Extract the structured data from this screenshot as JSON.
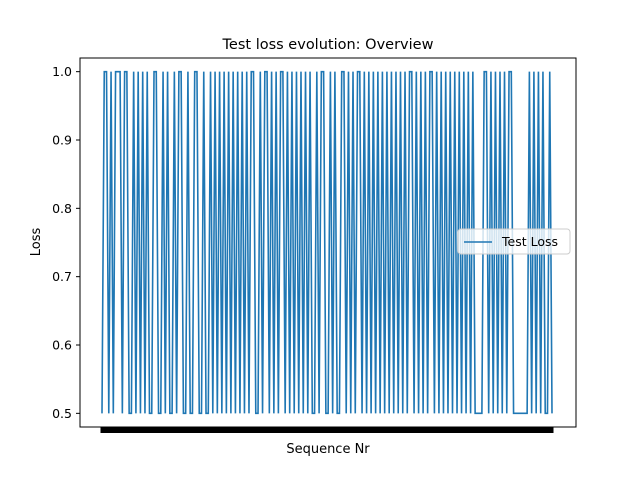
{
  "chart_data": {
    "type": "line",
    "title": "Test loss evolution: Overview",
    "xlabel": "Sequence Nr",
    "ylabel": "Loss",
    "ylim": [
      0.48,
      1.02
    ],
    "yticks": [
      "0.5",
      "0.6",
      "0.7",
      "0.8",
      "0.9",
      "1.0"
    ],
    "ytick_values": [
      0.5,
      0.6,
      0.7,
      0.8,
      0.9,
      1.0
    ],
    "grid": false,
    "legend_position": "center-right",
    "series": [
      {
        "name": "Test Loss",
        "color": "#1f77b4",
        "baseline": 0.5,
        "spike_value": 1.0,
        "values_x": [
          0,
          1,
          2,
          3,
          4,
          5,
          6,
          7,
          8,
          9,
          10,
          11,
          12,
          13,
          14,
          15,
          16,
          17,
          18,
          19,
          20,
          21,
          22,
          23,
          24,
          25,
          26,
          27,
          28,
          29,
          30,
          31,
          32,
          33,
          34,
          35,
          36,
          37,
          38,
          39,
          40,
          41,
          42,
          43,
          44,
          45,
          46,
          47,
          48,
          49,
          50,
          51,
          52,
          53,
          54,
          55,
          56,
          57,
          58,
          59,
          60,
          61,
          62,
          63,
          64,
          65,
          66,
          67,
          68,
          69,
          70,
          71,
          72,
          73,
          74,
          75,
          76,
          77,
          78,
          79,
          80,
          81,
          82,
          83,
          84,
          85,
          86,
          87,
          88,
          89,
          90,
          91,
          92,
          93,
          94,
          95,
          96,
          97,
          98,
          99,
          100,
          101,
          102,
          103,
          104,
          105,
          106,
          107,
          108,
          109,
          110,
          111,
          112,
          113,
          114,
          115,
          116,
          117,
          118,
          119,
          120,
          121,
          122,
          123,
          124,
          125,
          126,
          127,
          128,
          129,
          130,
          131,
          132,
          133,
          134,
          135,
          136,
          137,
          138,
          139,
          140,
          141,
          142,
          143,
          144,
          145,
          146,
          147,
          148,
          149,
          150,
          151,
          152,
          153,
          154,
          155,
          156,
          157,
          158,
          159,
          160,
          161,
          162,
          163,
          164,
          165,
          166,
          167,
          168,
          169,
          170,
          171,
          172,
          173,
          174,
          175,
          176,
          177,
          178,
          179,
          180,
          181,
          182,
          183,
          184,
          185,
          186,
          187,
          188,
          189,
          190,
          191,
          192,
          193,
          194,
          195,
          196,
          197,
          198,
          199
        ],
        "spike_x": [
          1,
          2,
          4,
          6,
          7,
          8,
          10,
          11,
          14,
          16,
          18,
          20,
          23,
          24,
          27,
          29,
          32,
          34,
          35,
          38,
          41,
          42,
          45,
          48,
          50,
          52,
          54,
          56,
          58,
          60,
          62,
          64,
          66,
          67,
          70,
          72,
          73,
          75,
          77,
          79,
          80,
          82,
          84,
          86,
          88,
          90,
          92,
          95,
          97,
          98,
          101,
          103,
          106,
          107,
          109,
          111,
          113,
          114,
          116,
          118,
          120,
          122,
          124,
          126,
          128,
          130,
          132,
          134,
          136,
          137,
          139,
          141,
          143,
          145,
          146,
          148,
          150,
          152,
          154,
          156,
          158,
          160,
          162,
          164,
          169,
          170,
          172,
          174,
          176,
          178,
          180,
          181,
          189,
          191,
          193,
          195,
          198
        ]
      }
    ]
  }
}
